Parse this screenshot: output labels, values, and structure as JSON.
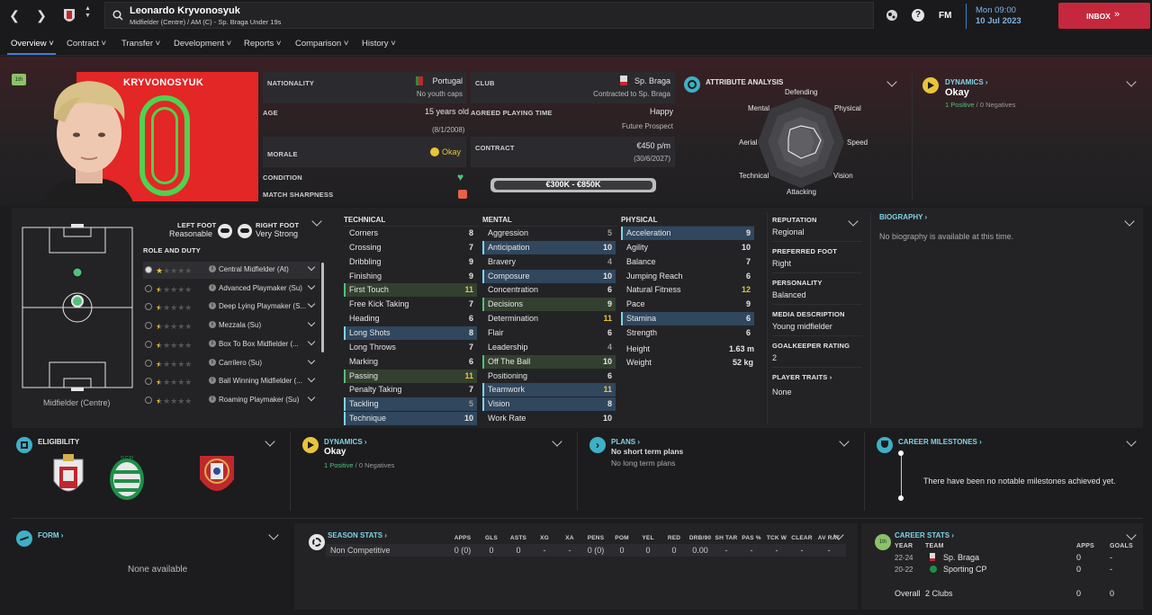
{
  "header": {
    "player_name": "Leonardo Kryvonosyuk",
    "player_sub": "Midfielder (Centre) / AM (C) - Sp. Braga Under 19s",
    "fm_label": "FM",
    "date_time": "Mon 09:00",
    "date": "10 Jul 2023",
    "inbox_label": "INBOX"
  },
  "menu": [
    "Overview",
    "Contract",
    "Transfer",
    "Development",
    "Reports",
    "Comparison",
    "History"
  ],
  "profile": {
    "rank_badge": "1th",
    "surname": "KRYVONOSYUK",
    "shirt_number": "0"
  },
  "info": {
    "nationality_label": "NATIONALITY",
    "nationality": "Portugal",
    "youth_caps": "No youth caps",
    "age_label": "AGE",
    "age": "15 years old",
    "dob": "(8/1/2008)",
    "morale_label": "MORALE",
    "morale": "Okay",
    "condition_label": "CONDITION",
    "sharpness_label": "MATCH SHARPNESS",
    "club_label": "CLUB",
    "club": "Sp. Braga",
    "contracted": "Contracted to Sp. Braga",
    "apt_label": "AGREED PLAYING TIME",
    "apt": "Happy",
    "apt_sub": "Future Prospect",
    "contract_label": "CONTRACT",
    "wage": "€450 p/m",
    "expiry": "(30/6/2027)",
    "value": "€300K - €850K"
  },
  "attribute_analysis": {
    "title": "ATTRIBUTE ANALYSIS",
    "labels": [
      "Defending",
      "Physical",
      "Speed",
      "Vision",
      "Attacking",
      "Technical",
      "Aerial",
      "Mental"
    ]
  },
  "dynamics_top": {
    "title": "DYNAMICS",
    "value": "Okay",
    "positive": "1 Positive",
    "sep": "/",
    "negative": "0 Negatives"
  },
  "pitch": {
    "left_foot_label": "LEFT FOOT",
    "left_foot": "Reasonable",
    "right_foot_label": "RIGHT FOOT",
    "right_foot": "Very Strong",
    "role_duty_label": "ROLE AND DUTY",
    "position": "Midfielder (Centre)"
  },
  "roles": [
    {
      "name": "Central Midfielder (At)",
      "stars": 1.0
    },
    {
      "name": "Advanced Playmaker (Su)",
      "stars": 0.5
    },
    {
      "name": "Deep Lying Playmaker (S...",
      "stars": 0.5
    },
    {
      "name": "Mezzala (Su)",
      "stars": 0.5
    },
    {
      "name": "Box To Box Midfielder (...",
      "stars": 0.5
    },
    {
      "name": "Carrilero (Su)",
      "stars": 0.5
    },
    {
      "name": "Ball Winning Midfielder (...",
      "stars": 0.5
    },
    {
      "name": "Roaming Playmaker (Su)",
      "stars": 0.5
    }
  ],
  "technical": {
    "title": "TECHNICAL",
    "rows": [
      [
        "Corners",
        "8"
      ],
      [
        "Crossing",
        "7"
      ],
      [
        "Dribbling",
        "9"
      ],
      [
        "Finishing",
        "9"
      ],
      [
        "First Touch",
        "11"
      ],
      [
        "Free Kick Taking",
        "7"
      ],
      [
        "Heading",
        "6"
      ],
      [
        "Long Shots",
        "8"
      ],
      [
        "Long Throws",
        "7"
      ],
      [
        "Marking",
        "6"
      ],
      [
        "Passing",
        "11"
      ],
      [
        "Penalty Taking",
        "7"
      ],
      [
        "Tackling",
        "5"
      ],
      [
        "Technique",
        "10"
      ]
    ]
  },
  "mental": {
    "title": "MENTAL",
    "rows": [
      [
        "Aggression",
        "5"
      ],
      [
        "Anticipation",
        "10"
      ],
      [
        "Bravery",
        "4"
      ],
      [
        "Composure",
        "10"
      ],
      [
        "Concentration",
        "6"
      ],
      [
        "Decisions",
        "9"
      ],
      [
        "Determination",
        "11"
      ],
      [
        "Flair",
        "6"
      ],
      [
        "Leadership",
        "4"
      ],
      [
        "Off The Ball",
        "10"
      ],
      [
        "Positioning",
        "6"
      ],
      [
        "Teamwork",
        "11"
      ],
      [
        "Vision",
        "8"
      ],
      [
        "Work Rate",
        "10"
      ]
    ]
  },
  "physical": {
    "title": "PHYSICAL",
    "rows": [
      [
        "Acceleration",
        "9"
      ],
      [
        "Agility",
        "10"
      ],
      [
        "Balance",
        "7"
      ],
      [
        "Jumping Reach",
        "6"
      ],
      [
        "Natural Fitness",
        "12"
      ],
      [
        "Pace",
        "9"
      ],
      [
        "Stamina",
        "6"
      ],
      [
        "Strength",
        "6"
      ]
    ],
    "height_label": "Height",
    "height": "1.63 m",
    "weight_label": "Weight",
    "weight": "52 kg"
  },
  "side": {
    "reputation_label": "REPUTATION",
    "reputation": "Regional",
    "pref_foot_label": "PREFERRED FOOT",
    "pref_foot": "Right",
    "personality_label": "PERSONALITY",
    "personality": "Balanced",
    "media_label": "MEDIA DESCRIPTION",
    "media": "Young midfielder",
    "gk_label": "GOALKEEPER RATING",
    "gk": "2",
    "traits_label": "PLAYER TRAITS",
    "traits": "None"
  },
  "biography": {
    "title": "BIOGRAPHY",
    "text": "No biography is available at this time."
  },
  "eligibility": {
    "title": "ELIGIBILITY"
  },
  "dynamics_bottom": {
    "title": "DYNAMICS",
    "value": "Okay",
    "positive": "1 Positive",
    "sep": "/",
    "negative": "0 Negatives"
  },
  "plans": {
    "title": "PLANS",
    "line1": "No short term plans",
    "line2": "No long term plans"
  },
  "milestones": {
    "title": "CAREER MILESTONES",
    "text": "There have been no notable milestones achieved yet."
  },
  "form": {
    "title": "FORM",
    "text": "None available"
  },
  "season": {
    "title": "SEASON STATS",
    "headers": [
      "APPS",
      "GLS",
      "ASTS",
      "XG",
      "XA",
      "PENS",
      "POM",
      "YEL",
      "RED",
      "DRB/90",
      "SH TAR",
      "PAS %",
      "TCK W",
      "CLEAR",
      "AV RAT"
    ],
    "row_label": "Non Competitive",
    "values": [
      "0 (0)",
      "0",
      "0",
      "-",
      "-",
      "0 (0)",
      "0",
      "0",
      "0",
      "0.00",
      "-",
      "-",
      "-",
      "-",
      "-"
    ]
  },
  "career": {
    "title": "CAREER STATS",
    "badge": "1th",
    "col_year": "YEAR",
    "col_team": "TEAM",
    "col_apps": "APPS",
    "col_goals": "GOALS",
    "rows": [
      [
        "22-24",
        "Sp. Braga",
        "0",
        "-"
      ],
      [
        "20-22",
        "Sporting CP",
        "0",
        "-"
      ]
    ],
    "overall_label": "Overall",
    "overall_clubs": "2 Clubs",
    "overall_apps": "0",
    "overall_goals": "0"
  }
}
